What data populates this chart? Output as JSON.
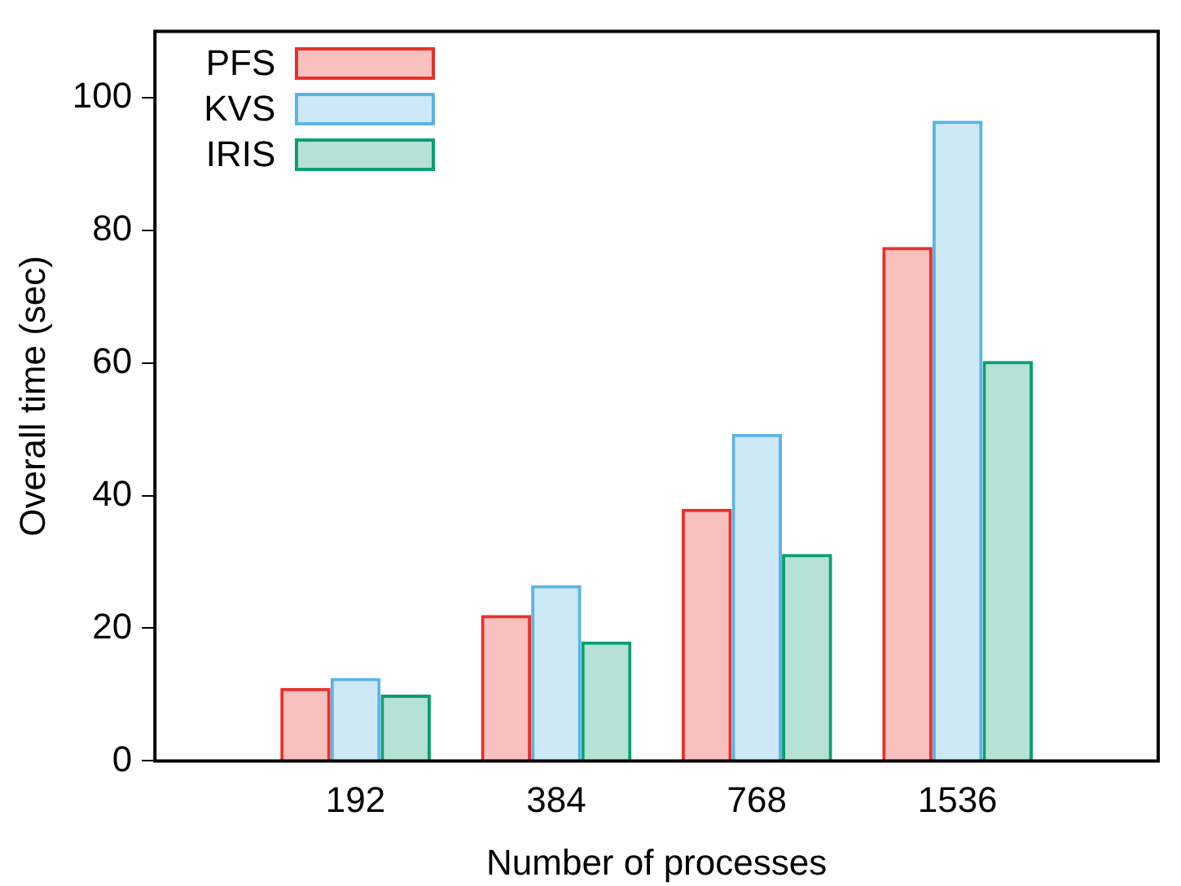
{
  "chart_data": {
    "type": "bar",
    "xlabel": "Number of processes",
    "ylabel": "Overall time (sec)",
    "categories": [
      "192",
      "384",
      "768",
      "1536"
    ],
    "series": [
      {
        "name": "PFS",
        "color": "#e8302a",
        "values": [
          11,
          22,
          38,
          77.5
        ]
      },
      {
        "name": "KVS",
        "color": "#5ab4e6",
        "values": [
          12.5,
          26.5,
          49.3,
          96.5
        ]
      },
      {
        "name": "IRIS",
        "color": "#0a9e73",
        "values": [
          10,
          18,
          31.2,
          60.3
        ]
      }
    ],
    "ylim": [
      0,
      110
    ],
    "yticks": [
      0,
      20,
      40,
      60,
      80,
      100
    ],
    "legend": "top left"
  }
}
